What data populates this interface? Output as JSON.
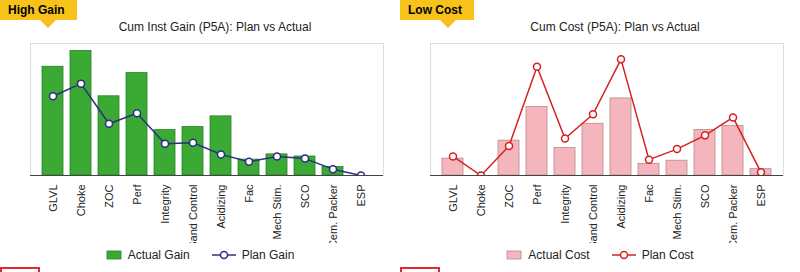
{
  "chart_data": [
    {
      "type": "bar",
      "title": "Cum Inst Gain (P5A): Plan vs Actual",
      "annotations": [
        "High Gain"
      ],
      "categories": [
        "GLVL",
        "Choke",
        "ZOC",
        "Perf",
        "Integrity",
        "Sand Control",
        "Acidizing",
        "Fac",
        "Mech Stim.",
        "SCO",
        "Cem. Packer",
        "ESP"
      ],
      "series": [
        {
          "name": "Actual Gain",
          "type": "bar",
          "color": "#3aaa35",
          "values": [
            103,
            118,
            75,
            97,
            43,
            46,
            56,
            15,
            20,
            18,
            8,
            0
          ]
        },
        {
          "name": "Plan Gain",
          "type": "line",
          "color": "#2b2f7f",
          "marker": "circle",
          "values": [
            75,
            87,
            49,
            59,
            30,
            31,
            20,
            13,
            18,
            16,
            6,
            0
          ]
        }
      ],
      "ylim": [
        0,
        125
      ],
      "yticks": [],
      "tick_labels": "x",
      "grid": false,
      "legend": "bottom"
    },
    {
      "type": "bar",
      "title": "Cum Cost (P5A): Plan vs Actual",
      "annotations": [
        "Low Cost"
      ],
      "categories": [
        "GLVL",
        "Choke",
        "ZOC",
        "Perf",
        "Integrity",
        "Sand Control",
        "Acidizing",
        "Fac",
        "Mech Stim.",
        "SCO",
        "Cem. Packer",
        "ESP"
      ],
      "series": [
        {
          "name": "Actual Cost",
          "type": "bar",
          "color": "#f4b6bc",
          "values": [
            16,
            0,
            33,
            65,
            26,
            49,
            73,
            11,
            14,
            43,
            47,
            6
          ]
        },
        {
          "name": "Plan Cost",
          "type": "line",
          "color": "#d62020",
          "marker": "circle",
          "values": [
            18,
            0,
            28,
            103,
            35,
            58,
            110,
            15,
            25,
            38,
            55,
            3
          ]
        }
      ],
      "ylim": [
        0,
        125
      ],
      "yticks": [],
      "tick_labels": "x",
      "grid": false,
      "legend": "bottom"
    }
  ]
}
